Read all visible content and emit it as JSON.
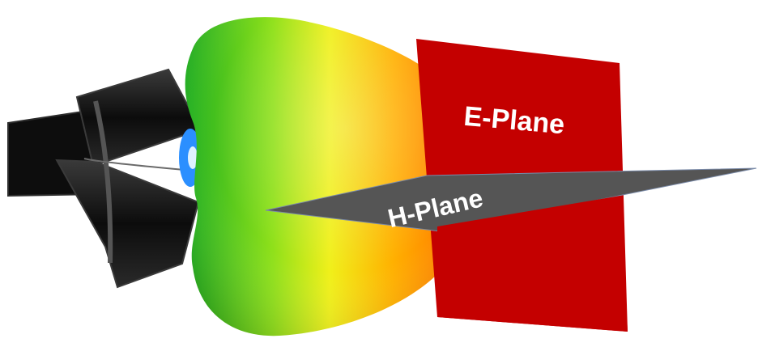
{
  "labels": {
    "e_plane": "E-Plane",
    "h_plane": "H-Plane"
  },
  "colors": {
    "e_plane_fill": "#c40000",
    "h_plane_fill": "#555555",
    "horn_body": "#111111",
    "horn_edge": "#3a3a3a",
    "lobe_gradient": [
      "#1fb01f",
      "#8ee01a",
      "#f0f01a",
      "#ffb000",
      "#ff6a00"
    ],
    "side_lobe": "#2b8fff",
    "background": "#ffffff"
  }
}
